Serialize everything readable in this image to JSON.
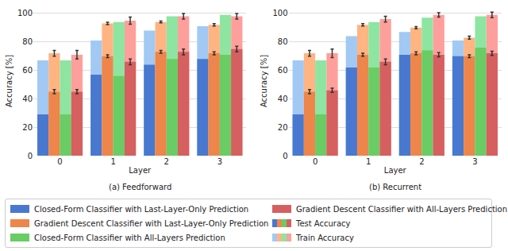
{
  "chart_data": [
    {
      "type": "bar",
      "title": "(a) Feedforward",
      "x_label": "Layer",
      "y_label": "Accuracy [%]",
      "categories": [
        "0",
        "1",
        "2",
        "3"
      ],
      "ylim": [
        0,
        105
      ],
      "yticks": [
        0,
        20,
        40,
        60,
        80,
        100
      ],
      "grid": true,
      "series": [
        {
          "name": "Closed-Form Classifier with Last-Layer-Only Prediction",
          "color": "#4878d0",
          "train_color": "#a1c9f4",
          "values": [
            29,
            57,
            64,
            68
          ],
          "train_values": [
            67,
            81,
            88,
            91
          ]
        },
        {
          "name": "Gradient Descent Classifier with Last-Layer-Only Prediction",
          "color": "#ee854a",
          "train_color": "#ffb482",
          "values": [
            45,
            70,
            73,
            72
          ],
          "train_values": [
            72,
            93,
            94,
            92
          ],
          "test_error": [
            1.5,
            1,
            1,
            1
          ],
          "train_error": [
            2,
            0.8,
            0.6,
            0.8
          ]
        },
        {
          "name": "Closed-Form Classifier with All-Layers Prediction",
          "color": "#6acc64",
          "train_color": "#8de5a1",
          "values": [
            29,
            56,
            68,
            71
          ],
          "train_values": [
            67,
            94,
            98,
            99
          ]
        },
        {
          "name": "Gradient Descent Classifier with All-Layers Prediction",
          "color": "#d65f5f",
          "train_color": "#ff9f9b",
          "values": [
            45,
            66,
            73,
            75
          ],
          "train_values": [
            71,
            95,
            98,
            98
          ],
          "test_error": [
            1.5,
            2,
            2,
            2
          ],
          "train_error": [
            3,
            2.5,
            2,
            2
          ]
        }
      ]
    },
    {
      "type": "bar",
      "title": "(b) Recurrent",
      "x_label": "Layer",
      "y_label": "Accuracy [%]",
      "categories": [
        "0",
        "1",
        "2",
        "3"
      ],
      "ylim": [
        0,
        105
      ],
      "yticks": [
        0,
        20,
        40,
        60,
        80,
        100
      ],
      "grid": true,
      "series": [
        {
          "name": "Closed-Form Classifier with Last-Layer-Only Prediction",
          "color": "#4878d0",
          "train_color": "#a1c9f4",
          "values": [
            29,
            62,
            71,
            70
          ],
          "train_values": [
            67,
            84,
            87,
            81
          ]
        },
        {
          "name": "Gradient Descent Classifier with Last-Layer-Only Prediction",
          "color": "#ee854a",
          "train_color": "#ffb482",
          "values": [
            45,
            71,
            72,
            70
          ],
          "train_values": [
            72,
            92,
            90,
            83
          ],
          "test_error": [
            1.5,
            1,
            1,
            1
          ],
          "train_error": [
            2,
            0.8,
            0.8,
            1
          ]
        },
        {
          "name": "Closed-Form Classifier with All-Layers Prediction",
          "color": "#6acc64",
          "train_color": "#8de5a1",
          "values": [
            29,
            62,
            74,
            76
          ],
          "train_values": [
            67,
            94,
            97,
            98
          ]
        },
        {
          "name": "Gradient Descent Classifier with All-Layers Prediction",
          "color": "#d65f5f",
          "train_color": "#ff9f9b",
          "values": [
            46,
            66,
            71,
            72
          ],
          "train_values": [
            72,
            96,
            99,
            99
          ],
          "test_error": [
            1.5,
            2,
            1.5,
            1.5
          ],
          "train_error": [
            3,
            2,
            1.5,
            2
          ]
        }
      ]
    }
  ],
  "accuracy_labels": {
    "test": "Test Accuracy",
    "train": "Train Accuracy"
  }
}
